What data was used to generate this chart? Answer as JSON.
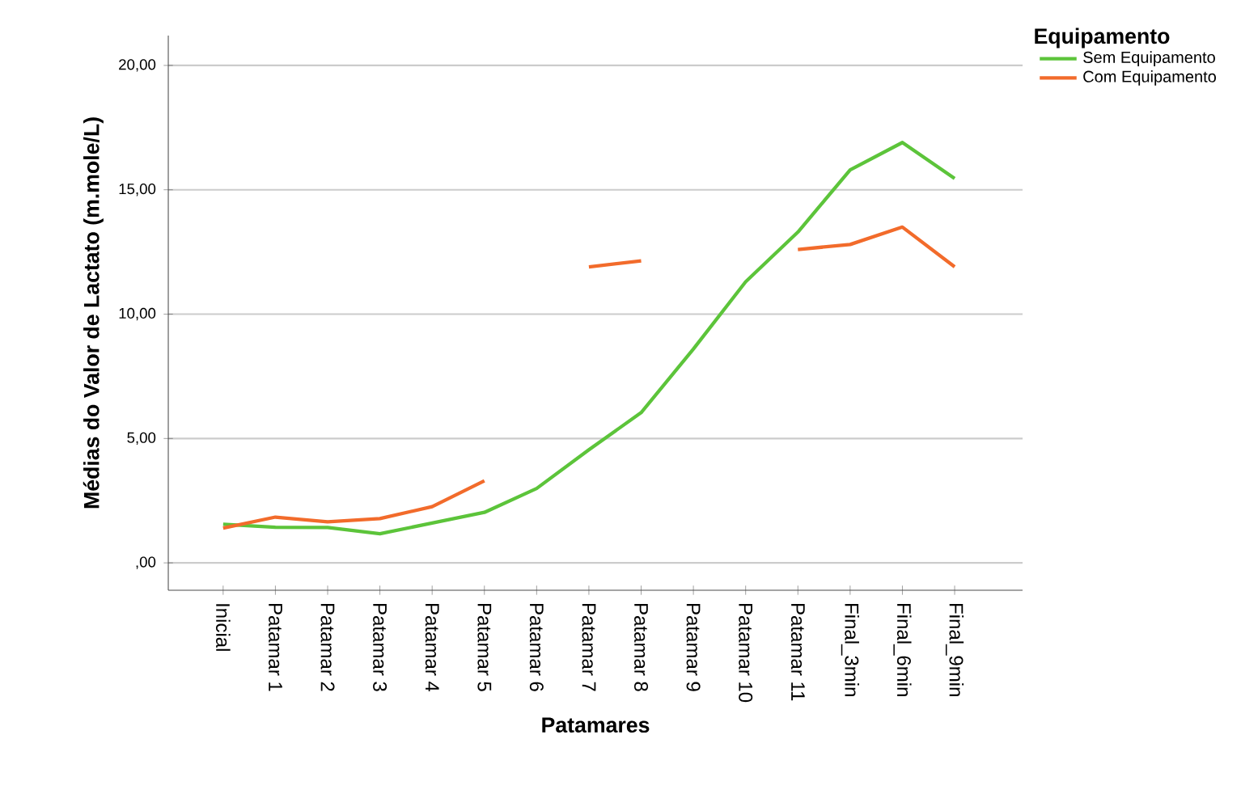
{
  "chart_data": {
    "type": "line",
    "xlabel": "Patamares",
    "ylabel": "Médias do Valor de Lactato (m.mole/L)",
    "legend_title": "Equipamento",
    "categories": [
      "Inicial",
      "Patamar 1",
      "Patamar 2",
      "Patamar 3",
      "Patamar 4",
      "Patamar 5",
      "Patamar 6",
      "Patamar 7",
      "Patamar 8",
      "Patamar 9",
      "Patamar 10",
      "Patamar 11",
      "Final_3min",
      "Final_6min",
      "Final_9min"
    ],
    "series": [
      {
        "name": "Sem Equipamento",
        "color": "#5cc43a",
        "values": [
          1.55,
          1.43,
          1.42,
          1.17,
          1.6,
          2.03,
          2.99,
          4.55,
          6.04,
          8.6,
          11.3,
          13.3,
          15.8,
          16.9,
          15.45
        ]
      },
      {
        "name": "Com Equipamento",
        "color": "#f26b2b",
        "values": [
          1.4,
          1.84,
          1.65,
          1.78,
          2.26,
          3.3,
          null,
          11.9,
          12.14,
          null,
          null,
          12.6,
          12.8,
          13.5,
          11.9
        ]
      }
    ],
    "ylim": [
      -1.1,
      21.2
    ],
    "yticks": [
      {
        "value": 0,
        "label": ",00"
      },
      {
        "value": 5,
        "label": "5,00"
      },
      {
        "value": 10,
        "label": "10,00"
      },
      {
        "value": 15,
        "label": "15,00"
      },
      {
        "value": 20,
        "label": "20,00"
      }
    ],
    "grid": "y",
    "legend": "top right",
    "marker": "none",
    "line_style": "solid"
  }
}
